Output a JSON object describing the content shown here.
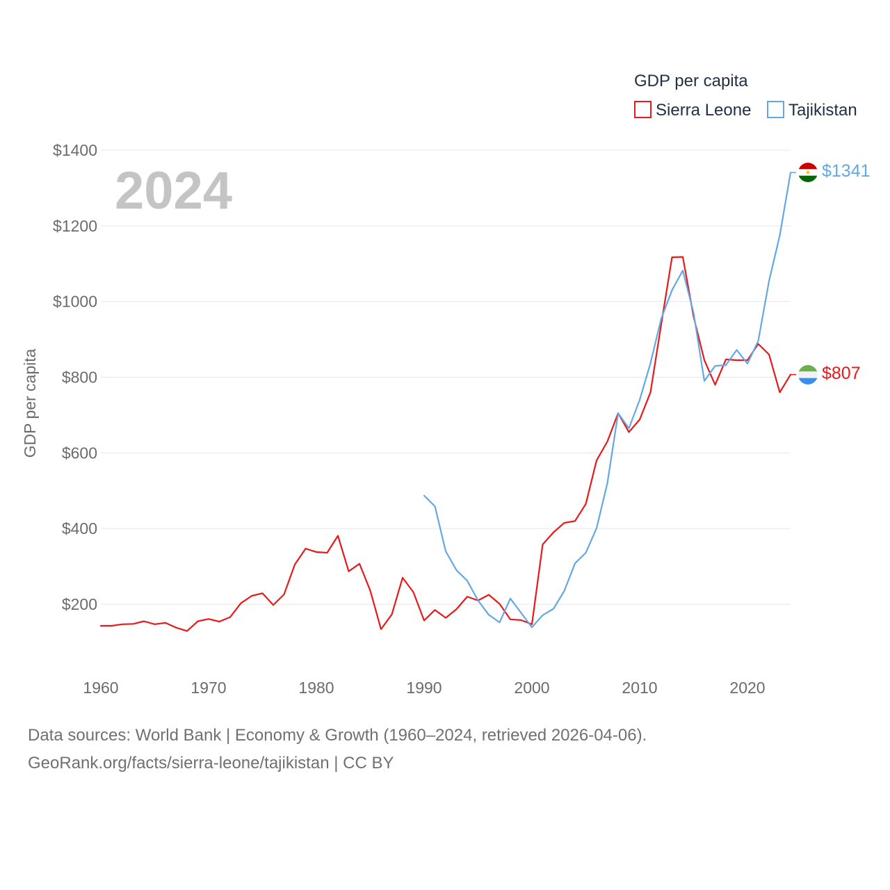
{
  "chart_data": {
    "type": "line",
    "title": "GDP per capita",
    "ylabel": "GDP per capita",
    "xlabel": "",
    "year_label": "2024",
    "ylim": [
      0,
      1400
    ],
    "xlim": [
      1960,
      2024
    ],
    "y_ticks": [
      200,
      400,
      600,
      800,
      1000,
      1200,
      1400
    ],
    "y_tick_labels": [
      "$200",
      "$400",
      "$600",
      "$800",
      "$1000",
      "$1200",
      "$1400"
    ],
    "x_ticks": [
      1960,
      1970,
      1980,
      1990,
      2000,
      2010,
      2020
    ],
    "x_tick_labels": [
      "1960",
      "1970",
      "1980",
      "1990",
      "2000",
      "2010",
      "2020"
    ],
    "legend": {
      "title": "GDP per capita",
      "position": "top-right"
    },
    "series": [
      {
        "name": "Sierra Leone",
        "color": "#e8191a",
        "end_label": "$807",
        "flag": "sierra-leone-flag-icon",
        "x": [
          1960,
          1961,
          1962,
          1963,
          1964,
          1965,
          1966,
          1967,
          1968,
          1969,
          1970,
          1971,
          1972,
          1973,
          1974,
          1975,
          1976,
          1977,
          1978,
          1979,
          1980,
          1981,
          1982,
          1983,
          1984,
          1985,
          1986,
          1987,
          1988,
          1989,
          1990,
          1991,
          1992,
          1993,
          1994,
          1995,
          1996,
          1997,
          1998,
          1999,
          2000,
          2001,
          2002,
          2003,
          2004,
          2005,
          2006,
          2007,
          2008,
          2009,
          2010,
          2011,
          2012,
          2013,
          2014,
          2015,
          2016,
          2017,
          2018,
          2019,
          2020,
          2021,
          2022,
          2023,
          2024
        ],
        "values": [
          143,
          143,
          147,
          148,
          155,
          147,
          151,
          138,
          129,
          155,
          161,
          154,
          166,
          203,
          222,
          229,
          198,
          226,
          305,
          347,
          338,
          336,
          381,
          287,
          307,
          236,
          134,
          173,
          270,
          232,
          157,
          185,
          164,
          187,
          220,
          210,
          225,
          201,
          160,
          158,
          147,
          358,
          390,
          415,
          420,
          465,
          580,
          630,
          705,
          655,
          688,
          760,
          940,
          1117,
          1118,
          960,
          845,
          780,
          847,
          845,
          845,
          888,
          860,
          760,
          807
        ]
      },
      {
        "name": "Tajikistan",
        "color": "#62a8e5",
        "end_label": "$1341",
        "flag": "tajikistan-flag-icon",
        "x": [
          1990,
          1991,
          1992,
          1993,
          1994,
          1995,
          1996,
          1997,
          1998,
          1999,
          2000,
          2001,
          2002,
          2003,
          2004,
          2005,
          2006,
          2007,
          2008,
          2009,
          2010,
          2011,
          2012,
          2013,
          2014,
          2015,
          2016,
          2017,
          2018,
          2019,
          2020,
          2021,
          2022,
          2023,
          2024
        ],
        "values": [
          487,
          459,
          340,
          290,
          262,
          210,
          172,
          152,
          215,
          177,
          139,
          171,
          188,
          235,
          308,
          336,
          401,
          520,
          705,
          665,
          740,
          837,
          955,
          1030,
          1082,
          970,
          790,
          830,
          832,
          872,
          836,
          896,
          1054,
          1175,
          1341
        ]
      }
    ]
  },
  "footer": {
    "line1": "Data sources: World Bank | Economy & Growth (1960–2024, retrieved 2026-04-06).",
    "line2": "GeoRank.org/facts/sierra-leone/tajikistan | CC BY"
  }
}
